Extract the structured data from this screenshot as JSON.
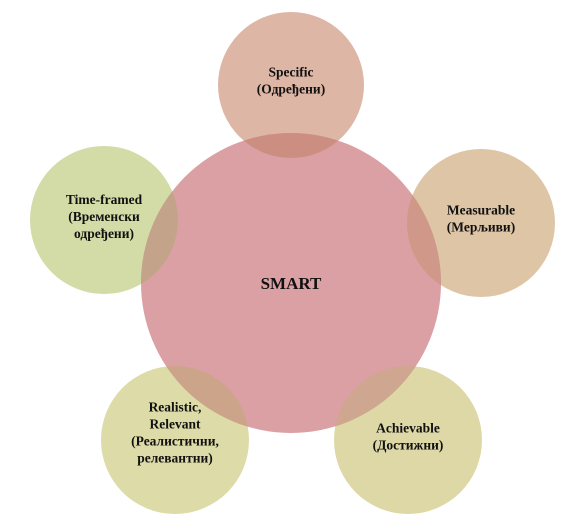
{
  "diagram": {
    "center": {
      "label": "SMART",
      "color": "#dba0a3"
    },
    "petals": [
      {
        "id": "specific",
        "lines": [
          "Specific",
          "(Одређени)"
        ],
        "color": "#deb6a5",
        "overlap_color": "#cd8e82"
      },
      {
        "id": "measurable",
        "lines": [
          "Measurable",
          "(Мерљиви)"
        ],
        "color": "#dec5a6",
        "overlap_color": "#cf9889"
      },
      {
        "id": "achievable",
        "lines": [
          "Achievable",
          "(Достижни)"
        ],
        "color": "#ddd8a6",
        "overlap_color": "#cfa68f"
      },
      {
        "id": "realistic",
        "lines": [
          "Realistic,",
          "Relevant",
          "(Реалистични,",
          "релевантни)"
        ],
        "color": "#dddba8",
        "overlap_color": "#cba489"
      },
      {
        "id": "time-framed",
        "lines": [
          "Time-framed",
          "(Временски",
          "одређени)"
        ],
        "color": "#d3dca7",
        "overlap_color": "#c3a48b"
      }
    ]
  }
}
